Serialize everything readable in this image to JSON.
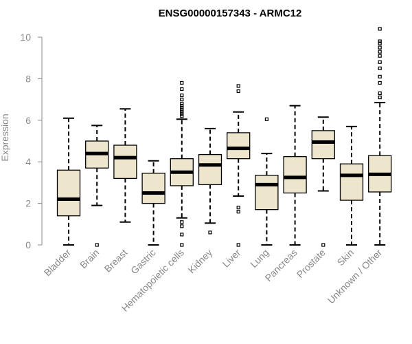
{
  "chart_data": {
    "type": "box",
    "title": "ENSG00000157343 - ARMC12",
    "ylabel": "Expression",
    "xlabel": "",
    "ylim": [
      0,
      10
    ],
    "yticks": [
      0,
      2,
      4,
      6,
      8,
      10
    ],
    "grid": false,
    "box_fill": "#ede6cd",
    "categories": [
      "Bladder",
      "Brain",
      "Breast",
      "Gastric",
      "Hematopoietic cells",
      "Kidney",
      "Liver",
      "Lung",
      "Pancreas",
      "Prostate",
      "Skin",
      "Unknown / Other"
    ],
    "boxes": [
      {
        "label": "Bladder",
        "min": 0,
        "q1": 1.4,
        "median": 2.2,
        "q3": 3.6,
        "max": 6.1,
        "outliers": []
      },
      {
        "label": "Brain",
        "min": 1.9,
        "q1": 3.7,
        "median": 4.4,
        "q3": 5.0,
        "max": 5.75,
        "outliers": [
          0
        ]
      },
      {
        "label": "Breast",
        "min": 1.1,
        "q1": 3.2,
        "median": 4.2,
        "q3": 4.8,
        "max": 6.55,
        "outliers": []
      },
      {
        "label": "Gastric",
        "min": 0,
        "q1": 2.0,
        "median": 2.5,
        "q3": 3.45,
        "max": 4.05,
        "outliers": []
      },
      {
        "label": "Hematopoietic cells",
        "min": 1.3,
        "q1": 2.85,
        "median": 3.5,
        "q3": 4.15,
        "max": 6.05,
        "outliers": [
          0,
          0.5,
          0.9,
          1.1,
          6.2,
          6.3,
          6.4,
          6.5,
          6.6,
          6.7,
          6.8,
          7.0,
          7.2,
          7.5,
          7.8
        ]
      },
      {
        "label": "Kidney",
        "min": 1.05,
        "q1": 2.9,
        "median": 3.85,
        "q3": 4.35,
        "max": 5.6,
        "outliers": [
          0.6
        ]
      },
      {
        "label": "Liver",
        "min": 2.35,
        "q1": 4.15,
        "median": 4.65,
        "q3": 5.4,
        "max": 6.4,
        "outliers": [
          0,
          1.6,
          1.8,
          7.4,
          7.65
        ]
      },
      {
        "label": "Lung",
        "min": 0,
        "q1": 1.7,
        "median": 2.9,
        "q3": 3.35,
        "max": 4.4,
        "outliers": [
          6.05
        ]
      },
      {
        "label": "Pancreas",
        "min": 0,
        "q1": 2.5,
        "median": 3.25,
        "q3": 4.25,
        "max": 6.7,
        "outliers": []
      },
      {
        "label": "Prostate",
        "min": 2.6,
        "q1": 4.15,
        "median": 4.95,
        "q3": 5.5,
        "max": 6.15,
        "outliers": [
          0
        ]
      },
      {
        "label": "Skin",
        "min": 0,
        "q1": 2.15,
        "median": 3.35,
        "q3": 3.9,
        "max": 5.7,
        "outliers": []
      },
      {
        "label": "Unknown / Other",
        "min": 0,
        "q1": 2.55,
        "median": 3.4,
        "q3": 4.3,
        "max": 6.85,
        "outliers": [
          7.1,
          7.3,
          7.8,
          8.1,
          8.5,
          8.8,
          9.1,
          9.3,
          9.5,
          9.7,
          9.8,
          10.4
        ]
      }
    ]
  }
}
